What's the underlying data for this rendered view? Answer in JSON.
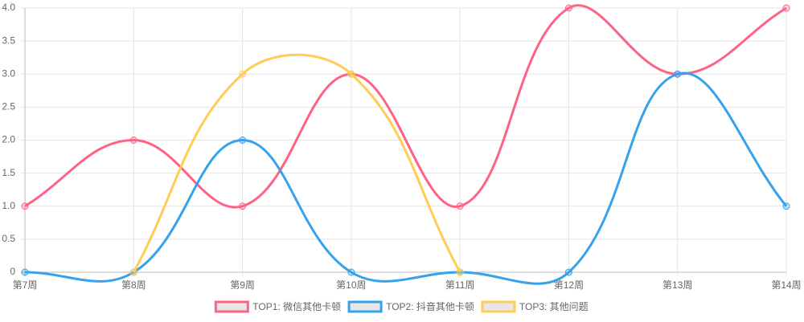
{
  "chart_data": {
    "type": "line",
    "categories": [
      "第7周",
      "第8周",
      "第9周",
      "第10周",
      "第11周",
      "第12周",
      "第13周",
      "第14周"
    ],
    "series": [
      {
        "name": "TOP1: 微信其他卡顿",
        "color": "#ff6384",
        "values": [
          1,
          2,
          1,
          3,
          1,
          4,
          3,
          4
        ]
      },
      {
        "name": "TOP2: 抖音其他卡顿",
        "color": "#36a2eb",
        "values": [
          0,
          0,
          2,
          0,
          0,
          0,
          3,
          1
        ]
      },
      {
        "name": "TOP3: 其他问题",
        "color": "#ffcd56",
        "values": [
          null,
          0,
          3,
          3,
          0,
          null,
          null,
          null
        ]
      }
    ],
    "ylim": [
      0,
      4
    ],
    "yticks": [
      0,
      0.5,
      {
        "value": 1,
        "label": "1.0"
      },
      1.5,
      {
        "value": 2,
        "label": "2.0"
      },
      2.5,
      {
        "value": 3,
        "label": "3.0"
      },
      3.5,
      {
        "value": 4,
        "label": "4.0"
      }
    ],
    "grid": true,
    "legend": "bottom"
  }
}
